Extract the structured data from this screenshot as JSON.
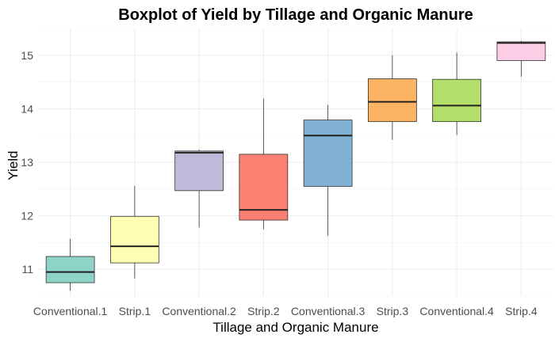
{
  "chart_data": {
    "type": "boxplot",
    "title": "Boxplot of Yield by Tillage and Organic Manure",
    "xlabel": "Tillage and Organic Manure",
    "ylabel": "Yield",
    "ylim": [
      10.5,
      15.5
    ],
    "yticks": [
      11,
      12,
      13,
      14,
      15
    ],
    "grid": true,
    "legend": "none",
    "categories": [
      "Conventional.1",
      "Strip.1",
      "Conventional.2",
      "Strip.2",
      "Conventional.3",
      "Strip.3",
      "Conventional.4",
      "Strip.4"
    ],
    "boxes": [
      {
        "min": 10.6,
        "q1": 10.75,
        "median": 10.95,
        "q3": 11.24,
        "max": 11.57,
        "color": "#8dd3c7"
      },
      {
        "min": 10.83,
        "q1": 11.12,
        "median": 11.43,
        "q3": 11.99,
        "max": 12.56,
        "color": "#ffffb3"
      },
      {
        "min": 11.78,
        "q1": 12.47,
        "median": 13.18,
        "q3": 13.21,
        "max": 13.24,
        "color": "#bebada"
      },
      {
        "min": 11.75,
        "q1": 11.92,
        "median": 12.11,
        "q3": 13.15,
        "max": 14.19,
        "color": "#fb8072"
      },
      {
        "min": 11.63,
        "q1": 12.55,
        "median": 13.5,
        "q3": 13.79,
        "max": 14.07,
        "color": "#80b1d3"
      },
      {
        "min": 13.42,
        "q1": 13.76,
        "median": 14.13,
        "q3": 14.56,
        "max": 15.0,
        "color": "#fdb462"
      },
      {
        "min": 13.51,
        "q1": 13.76,
        "median": 14.06,
        "q3": 14.55,
        "max": 15.05,
        "color": "#b3de69"
      },
      {
        "min": 14.6,
        "q1": 14.9,
        "median": 15.23,
        "q3": 15.25,
        "max": 15.27,
        "color": "#fccde5"
      }
    ]
  }
}
